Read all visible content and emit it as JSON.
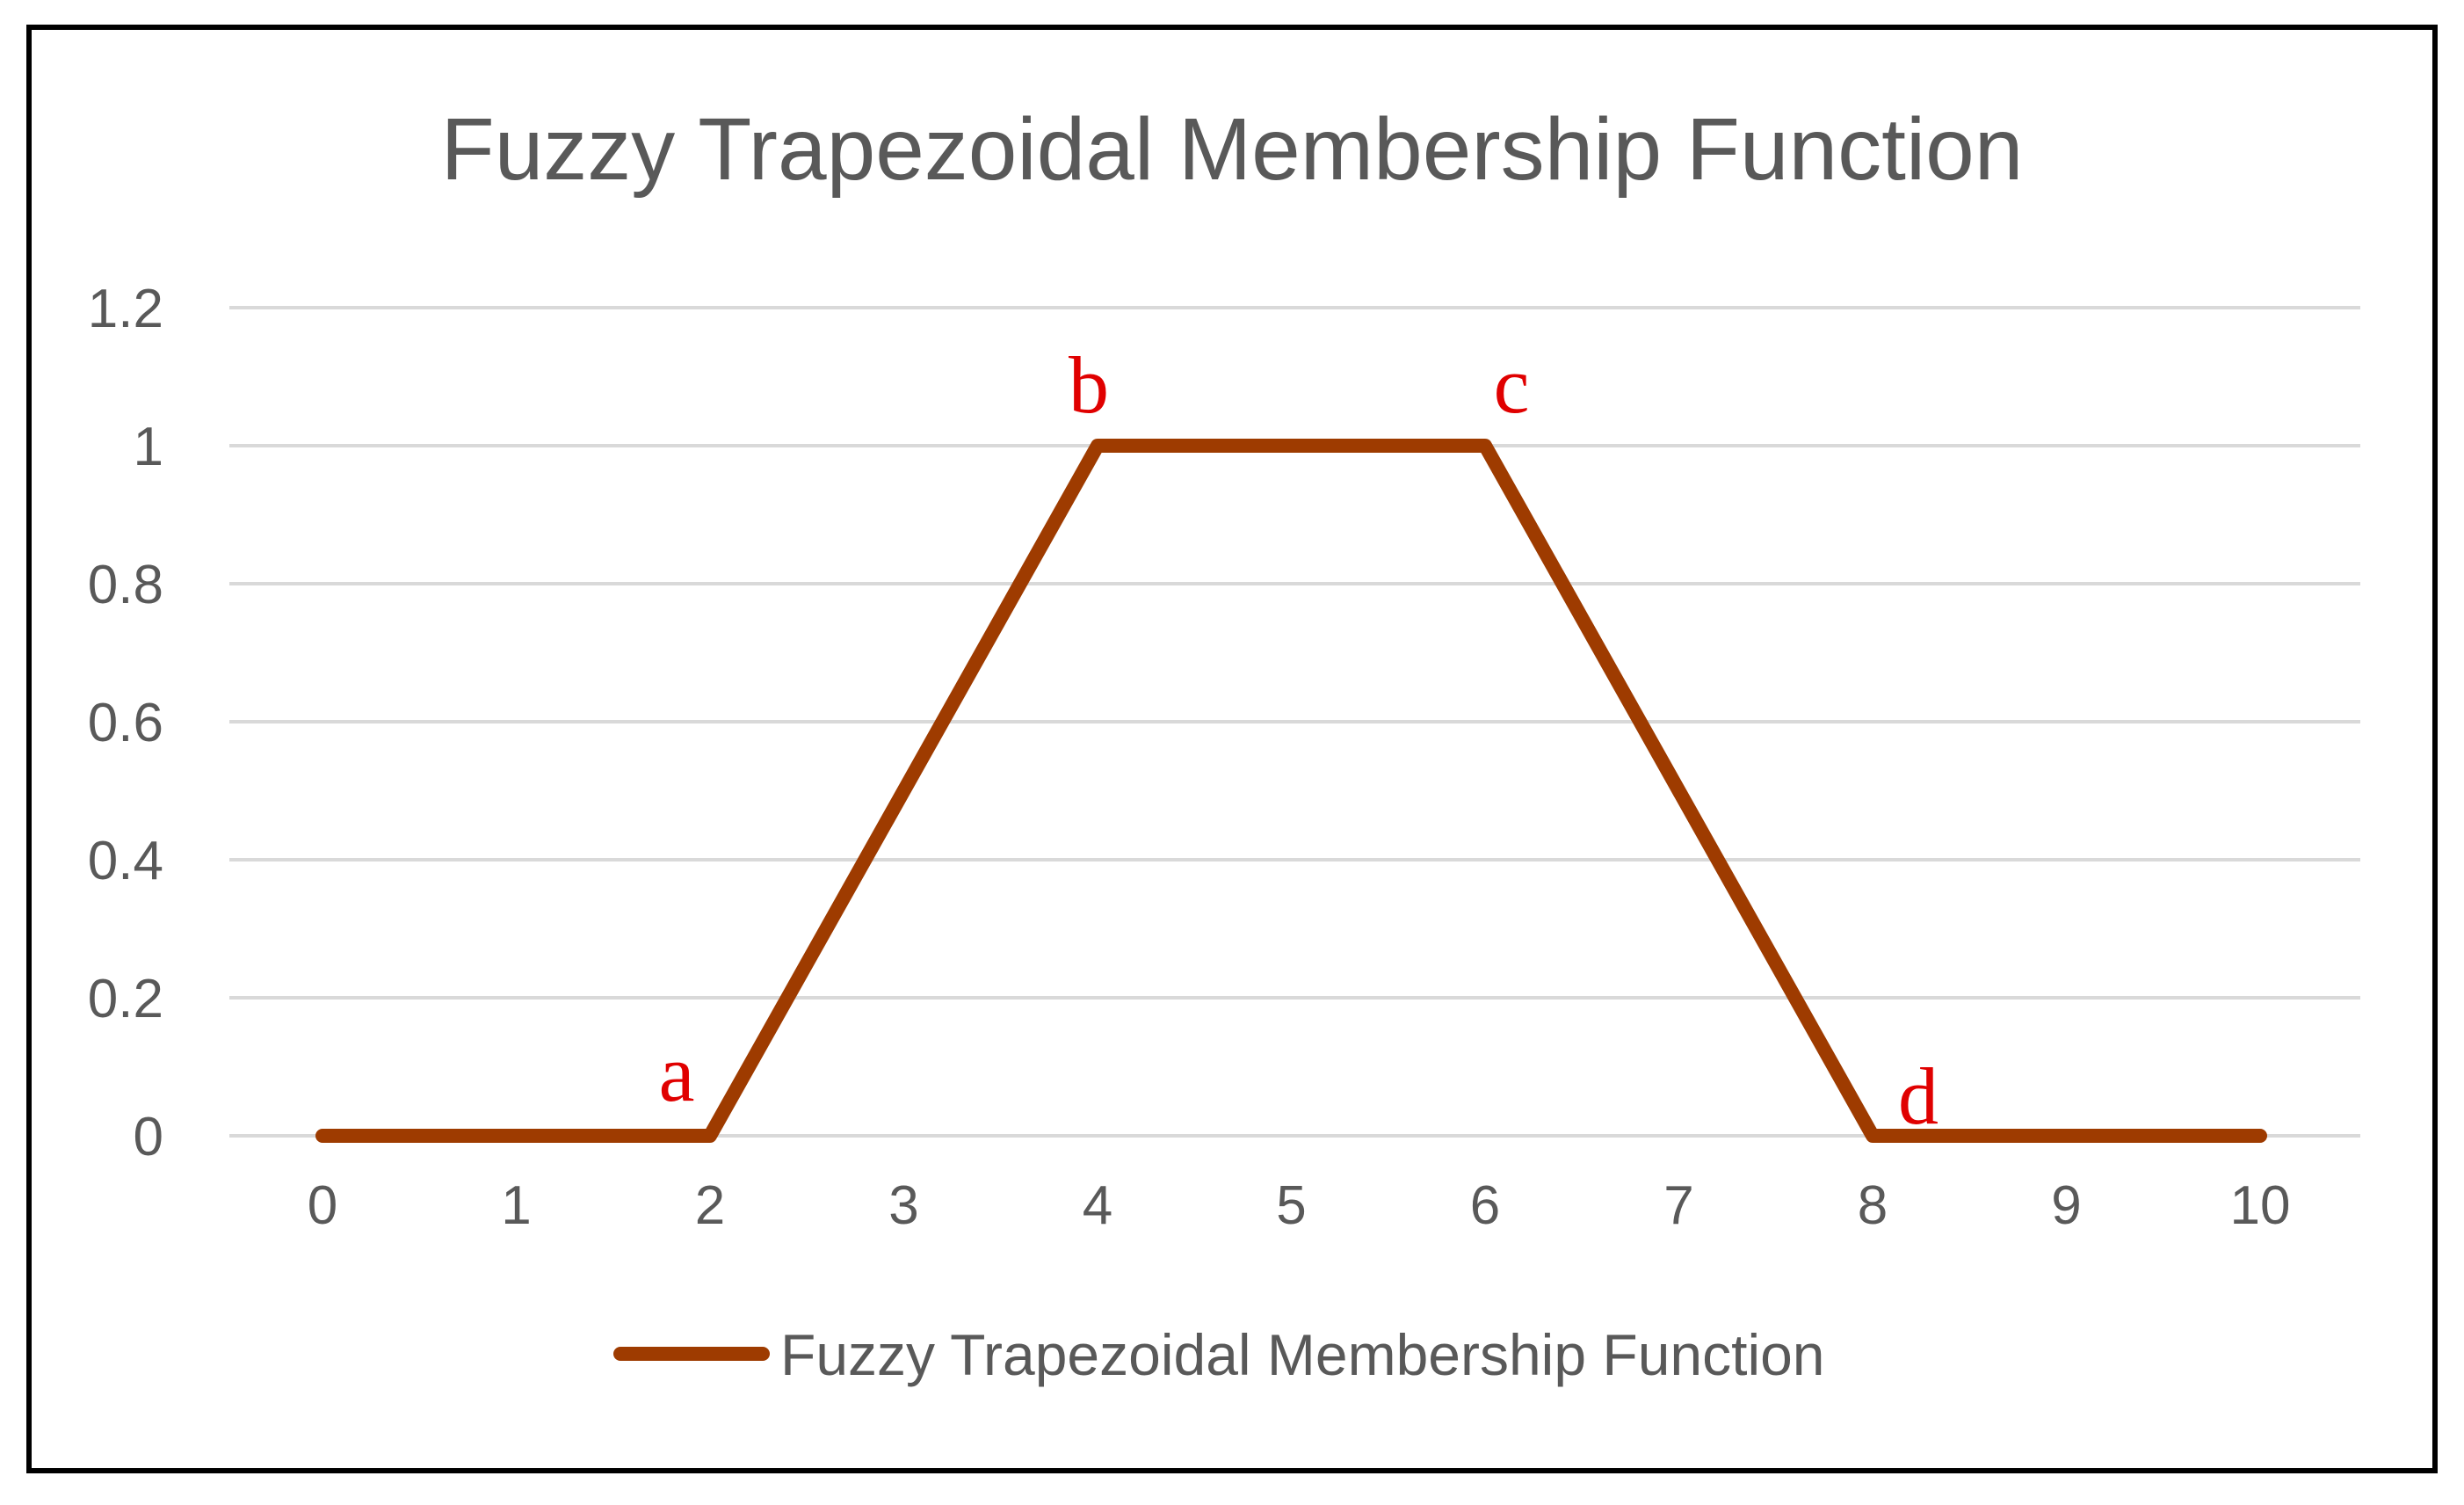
{
  "chart_data": {
    "type": "line",
    "title": "Fuzzy Trapezoidal Membership Function",
    "xlabel": "",
    "ylabel": "",
    "categories": [
      "0",
      "1",
      "2",
      "3",
      "4",
      "5",
      "6",
      "7",
      "8",
      "9",
      "10"
    ],
    "x": [
      0,
      2,
      4,
      6,
      8,
      10
    ],
    "series": [
      {
        "name": "Fuzzy Trapezoidal Membership Function",
        "x": [
          0,
          2,
          4,
          6,
          8,
          10
        ],
        "values": [
          0,
          0,
          1,
          1,
          0,
          0
        ],
        "color": "#9E3B00"
      }
    ],
    "ylim": [
      0,
      1.2
    ],
    "yticks": [
      "0",
      "0.2",
      "0.4",
      "0.6",
      "0.8",
      "1",
      "1.2"
    ],
    "grid": true,
    "legend_position": "bottom",
    "annotations": [
      {
        "text": "a",
        "x": 2,
        "y": 0,
        "color": "#E00000"
      },
      {
        "text": "b",
        "x": 4,
        "y": 1,
        "color": "#E00000"
      },
      {
        "text": "c",
        "x": 6,
        "y": 1,
        "color": "#E00000"
      },
      {
        "text": "d",
        "x": 8,
        "y": 0,
        "color": "#E00000"
      }
    ],
    "colors": {
      "grid": "#D9D9D9",
      "text": "#595959",
      "frame": "#000000"
    }
  }
}
